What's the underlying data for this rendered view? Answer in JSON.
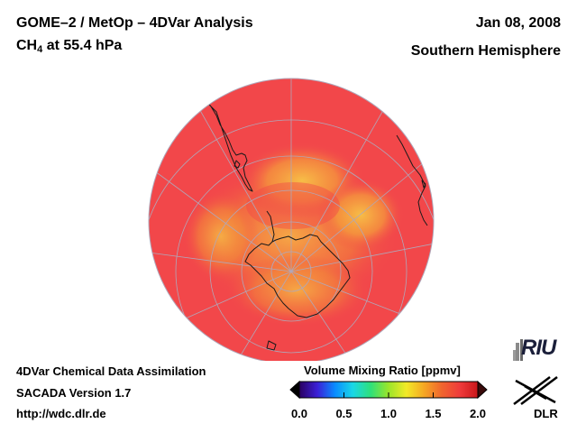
{
  "header": {
    "title": "GOME–2 / MetOp – 4DVar Analysis",
    "species": "CH",
    "species_sub": "4",
    "level": "at 55.4 hPa",
    "date": "Jan 08, 2008",
    "hemisphere": "Southern Hemisphere"
  },
  "footer": {
    "line1": "4DVar Chemical Data Assimilation",
    "line2": "SACADA Version 1.7",
    "line3": "http://wdc.dlr.de"
  },
  "colorbar": {
    "label": "Volume Mixing Ratio [ppmv]",
    "min": 0.0,
    "max": 2.0,
    "ticks": [
      "0.0",
      "0.5",
      "1.0",
      "1.5",
      "2.0"
    ],
    "tick_values": [
      0.0,
      0.5,
      1.0,
      1.5,
      2.0
    ],
    "colors": [
      "#2a0060",
      "#3b1fd6",
      "#0a8cff",
      "#19d7e6",
      "#2ee07a",
      "#9be52a",
      "#f2ea27",
      "#f5a623",
      "#f0642e",
      "#ef3b3b",
      "#c9161a"
    ]
  },
  "map": {
    "projection": "orthographic, south pole centred",
    "field_background_color": "#f2474a",
    "low_value_color": "#f7b242",
    "grid_color": "#b0a7b9",
    "coast_color": "#1a1a1a"
  },
  "logos": {
    "riu": "RIU",
    "dlr": "DLR"
  }
}
